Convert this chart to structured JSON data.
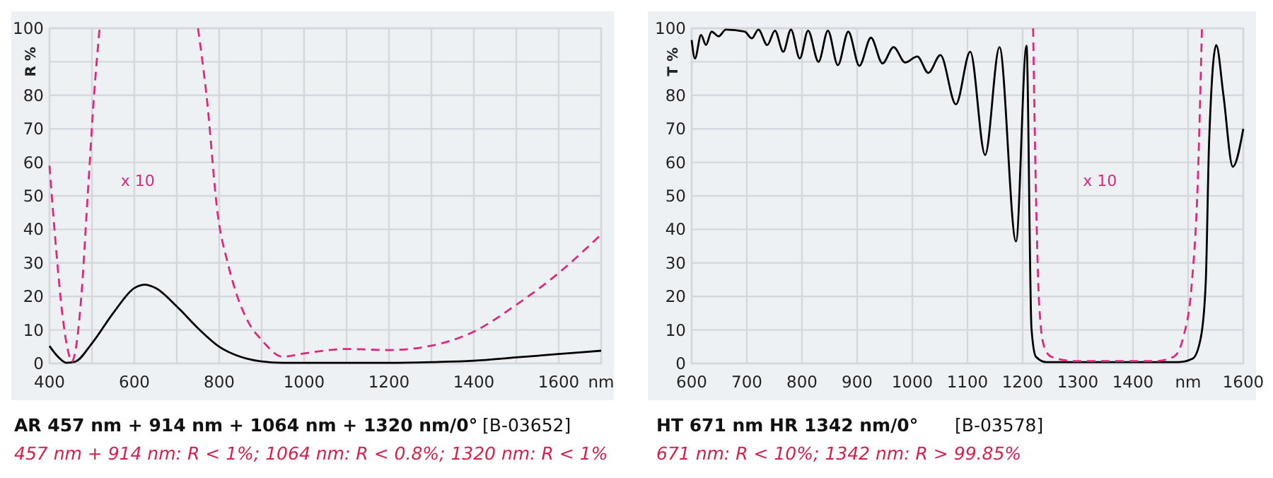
{
  "chart_data": [
    {
      "type": "line",
      "title": "AR 457 nm + 914 nm + 1064 nm + 1320 nm/0°",
      "subtitle": "457 nm + 914 nm: R < 1%; 1064 nm: R < 0.8%; 1320 nm: R < 1%",
      "ylabel": "R %",
      "xlim": [
        400,
        1700
      ],
      "ylim": [
        0,
        100
      ],
      "grid": true,
      "xticks": [
        400,
        {
          "value": 500,
          "label": null
        },
        600,
        {
          "value": 700,
          "label": null
        },
        800,
        {
          "value": 900,
          "label": null
        },
        1000,
        {
          "value": 1100,
          "label": null
        },
        1200,
        {
          "value": 1300,
          "label": null
        },
        1400,
        {
          "value": 1500,
          "label": null
        },
        1600,
        {
          "value": 1700,
          "label": "nm"
        }
      ],
      "yticks": [
        0,
        10,
        20,
        30,
        40,
        50,
        60,
        70,
        80,
        {
          "value": 90,
          "label": null
        },
        100
      ],
      "annotations": [
        "x 10",
        "[B-03652]"
      ],
      "series": [
        {
          "color": "#000000",
          "line_style": "solid",
          "x": [
            400,
            420,
            440,
            460,
            500,
            550,
            600,
            625,
            650,
            700,
            750,
            800,
            850,
            900,
            950,
            1000,
            1200,
            1300,
            1400,
            1500,
            1600,
            1700
          ],
          "values": [
            5.2,
            2,
            0.2,
            0.5,
            6,
            15,
            22.5,
            23.5,
            22.5,
            17,
            10.5,
            5,
            2,
            0.6,
            0.2,
            0.2,
            0.2,
            0.4,
            0.8,
            1.8,
            2.8,
            3.8
          ]
        },
        {
          "color": "#e0287a",
          "line_style": "dashed",
          "x": [
            400,
            415,
            430,
            445,
            452,
            460,
            475,
            490,
            505,
            518,
            520,
            750,
            770,
            797,
            820,
            840,
            870,
            900,
            950,
            1000,
            1100,
            1200,
            1300,
            1400,
            1500,
            1600,
            1700
          ],
          "values": [
            59,
            35,
            15,
            3,
            0.5,
            3,
            20,
            50,
            80,
            100,
            null,
            100,
            80,
            44,
            30,
            21,
            12,
            7,
            2,
            3,
            4.3,
            4,
            5.3,
            9.5,
            17.5,
            27,
            38.5
          ]
        }
      ]
    },
    {
      "type": "line",
      "title": "HT 671 nm HR 1342 nm/0°",
      "subtitle": "671 nm: R < 10%; 1342 nm: R > 99.85%",
      "ylabel": "T %",
      "xlim": [
        600,
        1600
      ],
      "ylim": [
        0,
        100
      ],
      "grid": true,
      "xticks": [
        600,
        700,
        800,
        900,
        1000,
        1100,
        1200,
        1300,
        1400,
        {
          "value": 1500,
          "label": "nm"
        },
        1600
      ],
      "yticks": [
        0,
        10,
        20,
        30,
        40,
        50,
        60,
        70,
        80,
        {
          "value": 90,
          "label": null
        },
        100
      ],
      "annotations": [
        "x 10",
        "[B-03578]"
      ],
      "series": [
        {
          "color": "#000000",
          "line_style": "solid",
          "x": [
            600,
            606,
            617,
            626,
            636,
            649,
            662,
            696,
            709,
            721,
            737,
            751,
            766,
            780,
            796,
            811,
            830,
            847,
            865,
            884,
            904,
            925,
            946,
            966,
            987,
            1009,
            1029,
            1051,
            1079,
            1105,
            1132,
            1158,
            1188,
            1207,
            1216,
            1224,
            1243,
            1483,
            1508,
            1523,
            1532,
            1538,
            1551,
            1564,
            1581,
            1600
          ],
          "values": [
            96.5,
            91,
            98,
            95,
            99,
            97.6,
            99.6,
            99,
            97,
            99.6,
            95,
            99.3,
            93,
            99.6,
            91,
            99.3,
            90,
            99.3,
            89,
            99,
            88.8,
            97.2,
            89.5,
            94.4,
            89.8,
            91.6,
            86.7,
            92,
            77.3,
            93,
            62.2,
            94.4,
            36.4,
            94.8,
            10.5,
            2,
            0.4,
            0.4,
            1.4,
            7.7,
            24.5,
            66,
            95,
            80,
            58.7,
            70
          ]
        },
        {
          "color": "#e0287a",
          "line_style": "dashed",
          "x": [
            1219,
            1224,
            1230,
            1239,
            1252,
            1295,
            1440,
            1474,
            1491,
            1507,
            1517,
            1525
          ],
          "values": [
            100,
            52,
            17.5,
            5,
            2,
            0.7,
            0.7,
            2,
            7.7,
            24.5,
            52,
            100
          ]
        }
      ]
    }
  ]
}
